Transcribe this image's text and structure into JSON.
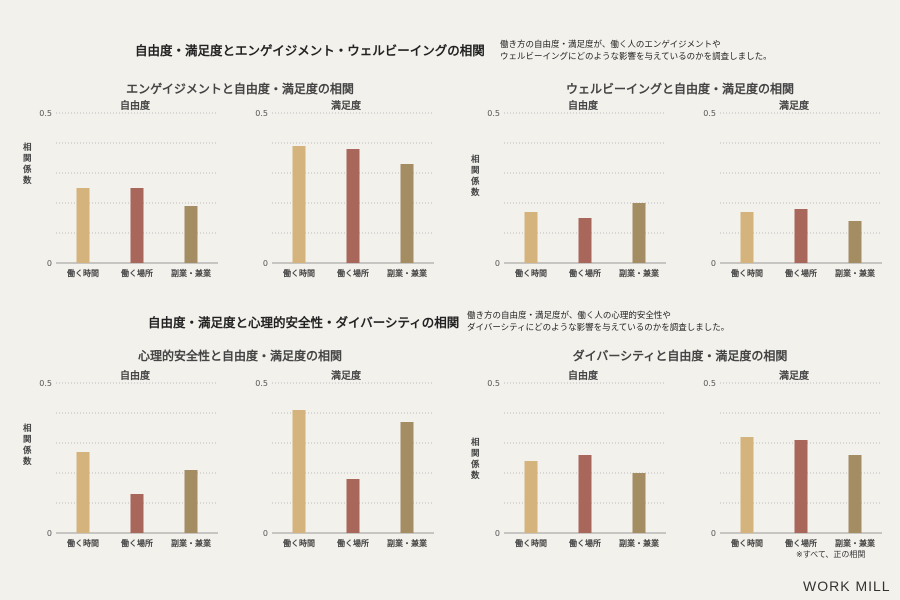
{
  "sections": [
    {
      "title": "自由度・満足度とエンゲイジメント・ウェルビーイングの相関",
      "description": "働き方の自由度・満足度が、働く人のエンゲイジメントや\nウェルビーイングにどのような影響を与えているのかを調査しました。"
    },
    {
      "title": "自由度・満足度と心理的安全性・ダイバーシティの相関",
      "description": "働き方の自由度・満足度が、働く人の心理的安全性や\nダイバーシティにどのような影響を与えているのかを調査しました。"
    }
  ],
  "groups": [
    {
      "title": "エンゲイジメントと自由度・満足度の相関"
    },
    {
      "title": "ウェルビーイングと自由度・満足度の相関"
    },
    {
      "title": "心理的安全性と自由度・満足度の相関"
    },
    {
      "title": "ダイバーシティと自由度・満足度の相関"
    }
  ],
  "ylabel": "相関係数",
  "colors": {
    "働く時間": "#d4b47c",
    "働く場所": "#a9675c",
    "副業・兼業": "#a48c63",
    "axis": "#999999",
    "grid": "#aaaaaa"
  },
  "chart_data": [
    {
      "type": "bar",
      "group": "エンゲイジメントと自由度・満足度の相関",
      "title": "自由度",
      "categories": [
        "働く時間",
        "働く場所",
        "副業・兼業"
      ],
      "values": [
        0.25,
        0.25,
        0.19
      ],
      "ylim": [
        0,
        0.5
      ],
      "yticks": [
        "0",
        "0.5"
      ],
      "grid": true
    },
    {
      "type": "bar",
      "group": "エンゲイジメントと自由度・満足度の相関",
      "title": "満足度",
      "categories": [
        "働く時間",
        "働く場所",
        "副業・兼業"
      ],
      "values": [
        0.39,
        0.38,
        0.33
      ],
      "ylim": [
        0,
        0.5
      ],
      "yticks": [
        "0",
        "0.5"
      ],
      "grid": true
    },
    {
      "type": "bar",
      "group": "ウェルビーイングと自由度・満足度の相関",
      "title": "自由度",
      "categories": [
        "働く時間",
        "働く場所",
        "副業・兼業"
      ],
      "values": [
        0.17,
        0.15,
        0.2
      ],
      "ylim": [
        0,
        0.5
      ],
      "yticks": [
        "0",
        "0.5"
      ],
      "grid": true
    },
    {
      "type": "bar",
      "group": "ウェルビーイングと自由度・満足度の相関",
      "title": "満足度",
      "categories": [
        "働く時間",
        "働く場所",
        "副業・兼業"
      ],
      "values": [
        0.17,
        0.18,
        0.14
      ],
      "ylim": [
        0,
        0.5
      ],
      "yticks": [
        "0",
        "0.5"
      ],
      "grid": true
    },
    {
      "type": "bar",
      "group": "心理的安全性と自由度・満足度の相関",
      "title": "自由度",
      "categories": [
        "働く時間",
        "働く場所",
        "副業・兼業"
      ],
      "values": [
        0.27,
        0.13,
        0.21
      ],
      "ylim": [
        0,
        0.5
      ],
      "yticks": [
        "0",
        "0.5"
      ],
      "grid": true
    },
    {
      "type": "bar",
      "group": "心理的安全性と自由度・満足度の相関",
      "title": "満足度",
      "categories": [
        "働く時間",
        "働く場所",
        "副業・兼業"
      ],
      "values": [
        0.41,
        0.18,
        0.37
      ],
      "ylim": [
        0,
        0.5
      ],
      "yticks": [
        "0",
        "0.5"
      ],
      "grid": true
    },
    {
      "type": "bar",
      "group": "ダイバーシティと自由度・満足度の相関",
      "title": "自由度",
      "categories": [
        "働く時間",
        "働く場所",
        "副業・兼業"
      ],
      "values": [
        0.24,
        0.26,
        0.2
      ],
      "ylim": [
        0,
        0.5
      ],
      "yticks": [
        "0",
        "0.5"
      ],
      "grid": true
    },
    {
      "type": "bar",
      "group": "ダイバーシティと自由度・満足度の相関",
      "title": "満足度",
      "categories": [
        "働く時間",
        "働く場所",
        "副業・兼業"
      ],
      "values": [
        0.32,
        0.31,
        0.26
      ],
      "ylim": [
        0,
        0.5
      ],
      "yticks": [
        "0",
        "0.5"
      ],
      "grid": true
    }
  ],
  "footnote": "※すべて、正の相関",
  "brand": "WORK MILL"
}
